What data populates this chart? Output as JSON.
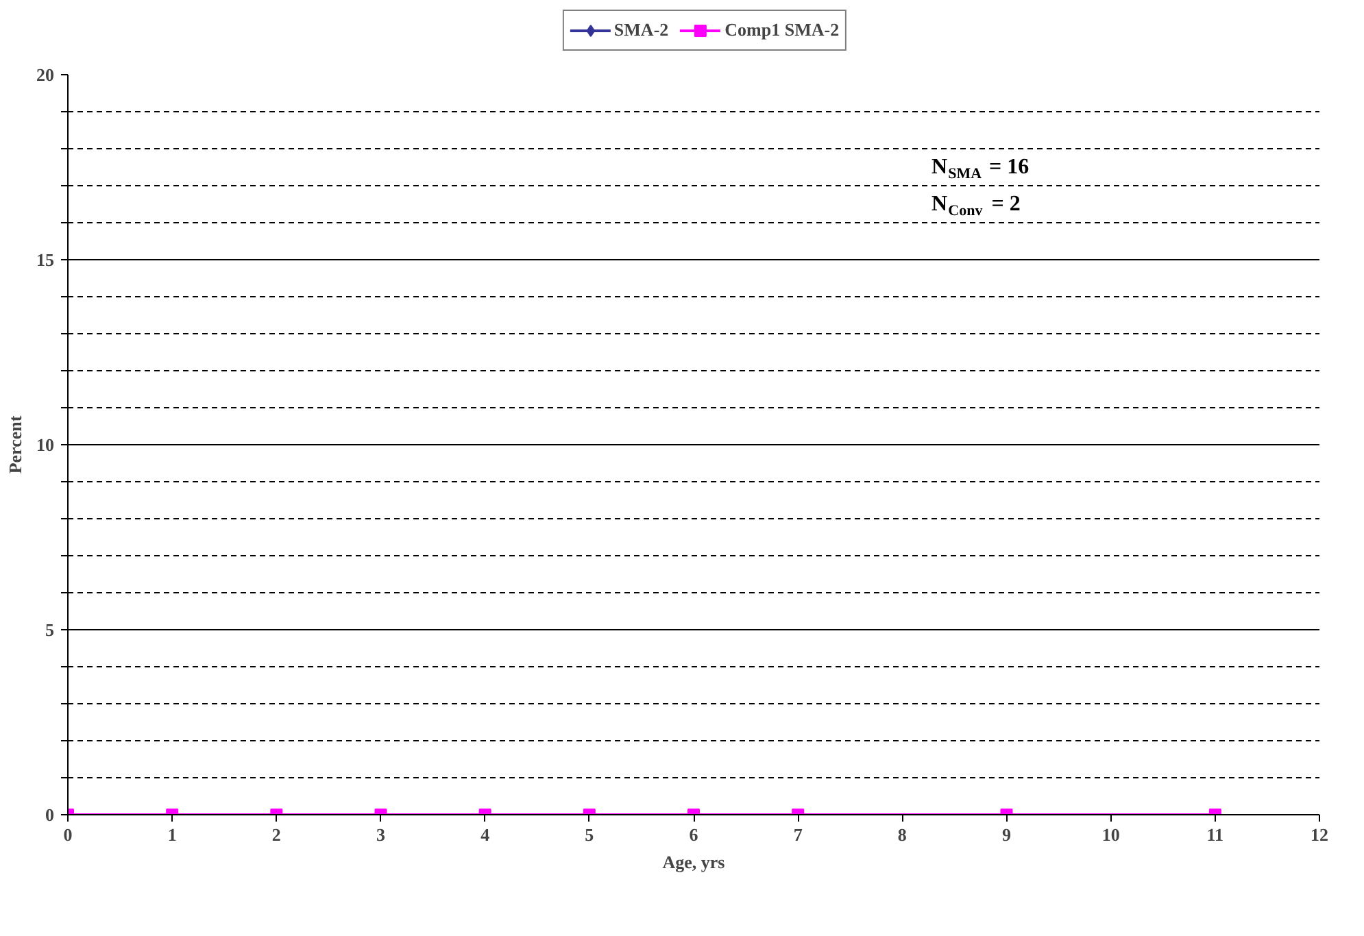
{
  "chart_data": {
    "type": "line",
    "xlabel": "Age, yrs",
    "ylabel": "Percent",
    "x": [
      0,
      1,
      2,
      3,
      4,
      5,
      6,
      7,
      9,
      11
    ],
    "series": [
      {
        "name": "SMA-2",
        "color": "#333399",
        "marker": "diamond",
        "values": [
          null,
          null,
          null,
          null,
          null,
          null,
          null,
          null,
          null,
          null
        ]
      },
      {
        "name": "Comp1 SMA-2",
        "color": "#ff00ff",
        "marker": "square",
        "values": [
          0,
          0,
          0,
          0,
          0,
          0,
          0,
          0,
          0,
          0
        ]
      }
    ],
    "xlim": [
      0,
      12
    ],
    "xticks": [
      0,
      1,
      2,
      3,
      4,
      5,
      6,
      7,
      8,
      9,
      10,
      11,
      12
    ],
    "ylim": [
      0,
      20
    ],
    "yticks": [
      0,
      {
        "value": 1,
        "label": null
      },
      {
        "value": 2,
        "label": null
      },
      {
        "value": 3,
        "label": null
      },
      {
        "value": 4,
        "label": null
      },
      5,
      {
        "value": 6,
        "label": null
      },
      {
        "value": 7,
        "label": null
      },
      {
        "value": 8,
        "label": null
      },
      {
        "value": 9,
        "label": null
      },
      10,
      {
        "value": 11,
        "label": null
      },
      {
        "value": 12,
        "label": null
      },
      {
        "value": 13,
        "label": null
      },
      {
        "value": 14,
        "label": null
      },
      15,
      {
        "value": 16,
        "label": null
      },
      {
        "value": 17,
        "label": null
      },
      {
        "value": 18,
        "label": null
      },
      {
        "value": 19,
        "label": null
      },
      20
    ],
    "grid": "y",
    "legend": "top",
    "annotations": [
      "N$_{SMA}$ = 16",
      "N$_{Conv}$ = 2"
    ]
  }
}
